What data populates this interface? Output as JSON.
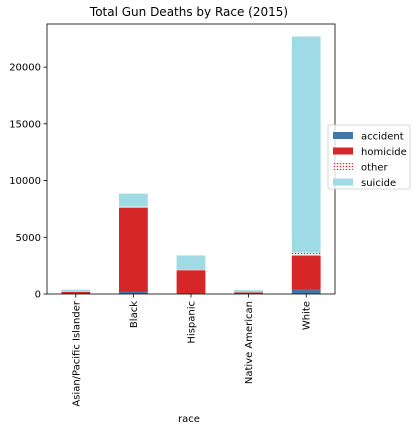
{
  "chart_data": {
    "type": "bar",
    "stacked": true,
    "title": "Total Gun Deaths by Race (2015)",
    "xlabel": "race",
    "ylabel": "",
    "categories": [
      "Asian/Pacific Islander",
      "Black",
      "Hispanic",
      "Native American",
      "White"
    ],
    "series": [
      {
        "name": "accident",
        "color": "#4477a6",
        "values": [
          10,
          220,
          50,
          20,
          400
        ]
      },
      {
        "name": "homicide",
        "color": "#d62728",
        "values": [
          170,
          7400,
          2050,
          120,
          3000
        ]
      },
      {
        "name": "other",
        "color": "#d62728",
        "pattern": "dotted",
        "values": [
          10,
          80,
          30,
          5,
          250
        ]
      },
      {
        "name": "suicide",
        "color": "#9fdbe5",
        "values": [
          190,
          1150,
          1270,
          195,
          19050
        ]
      }
    ],
    "ylim": [
      0,
      23800
    ],
    "yticks": [
      0,
      5000,
      10000,
      15000,
      20000
    ],
    "ytick_labels": [
      "0",
      "5000",
      "10000",
      "15000",
      "20000"
    ],
    "grid": false,
    "legend_position": "right"
  }
}
